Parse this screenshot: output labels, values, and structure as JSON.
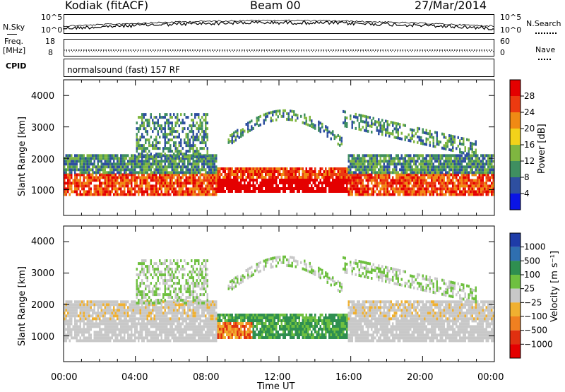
{
  "header": {
    "station": "Kodiak (fitACF)",
    "beam": "Beam 00",
    "date": "27/Mar/2014"
  },
  "strip_labels": {
    "nsky": "N.Sky",
    "nsky_ticks": [
      "10^5",
      "10^0"
    ],
    "nsearch": "N.Search",
    "nsearch_ticks": [
      "10^5",
      "10^0"
    ],
    "freq": "Freq.",
    "freq_unit": "[MHz]",
    "freq_ticks": [
      "18",
      "8"
    ],
    "nave": "Nave",
    "nave_ticks": [
      "60",
      "0"
    ],
    "cpid": "CPID",
    "cpid_text": "normalsound (fast) 157 RF"
  },
  "chart_data": [
    {
      "type": "heatmap",
      "name_printed": "Power [dB]",
      "ylabel": "Slant Range [km]",
      "xlabel": "",
      "yticks": [
        "1000",
        "2000",
        "3000",
        "4000"
      ],
      "xlim": [
        0,
        24
      ],
      "ylim": [
        180,
        4500
      ],
      "colorbar": {
        "label": "Power [dB]",
        "ticks": [
          "4",
          "8",
          "12",
          "16",
          "20",
          "24",
          "28"
        ],
        "range": [
          0,
          32
        ],
        "colors": [
          "#0a14e6",
          "#2e4fa0",
          "#3f8f60",
          "#7fb640",
          "#f2d21a",
          "#f08a14",
          "#ec3a10",
          "#e40000"
        ]
      }
    },
    {
      "type": "heatmap",
      "ylabel": "Slant Range [km]",
      "xlabel": "Time UT",
      "yticks": [
        "1000",
        "2000",
        "3000",
        "4000"
      ],
      "xticks": [
        "00:00",
        "04:00",
        "08:00",
        "12:00",
        "16:00",
        "20:00",
        "00:00"
      ],
      "xlim": [
        0,
        24
      ],
      "ylim": [
        180,
        4500
      ],
      "colorbar": {
        "label": "Velocity [m s⁻¹]",
        "ticks": [
          "1000",
          "500",
          "100",
          "25",
          "−25",
          "−100",
          "−500",
          "−1000"
        ],
        "colors": [
          "#1e3ca8",
          "#2f6fb0",
          "#2f8f50",
          "#6fc040",
          "#c8c8c8",
          "#f0b030",
          "#f08020",
          "#e03010",
          "#e40000"
        ]
      }
    }
  ]
}
